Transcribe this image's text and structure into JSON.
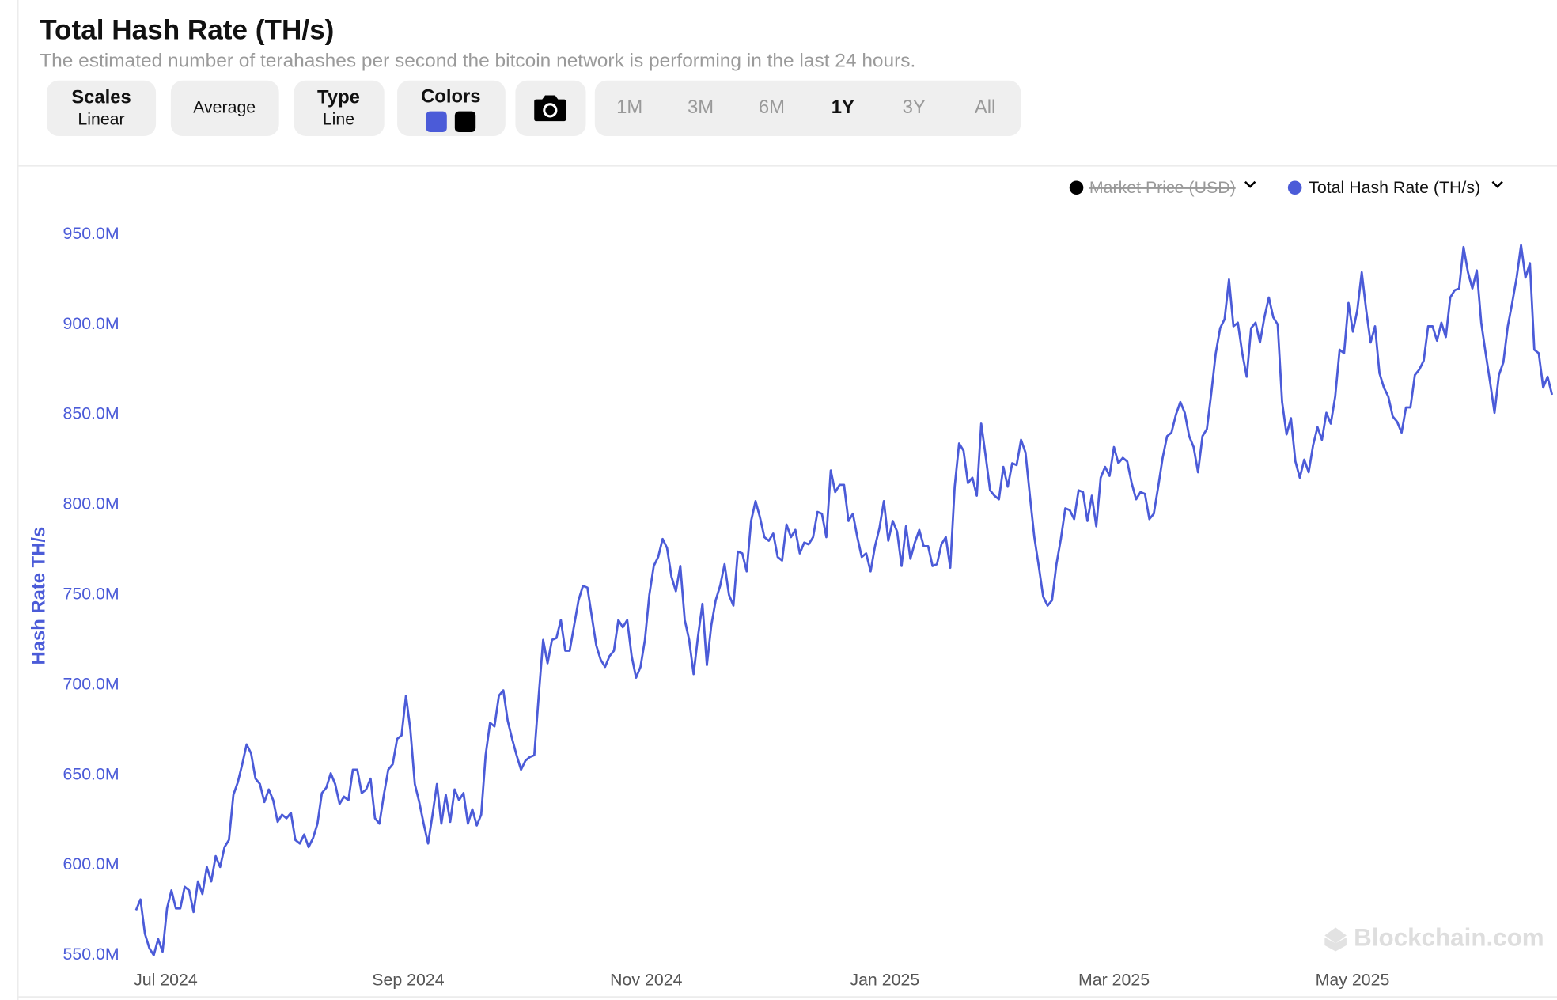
{
  "chart_data": {
    "type": "line",
    "title": "Total Hash Rate (TH/s)",
    "subtitle": "The estimated number of terahashes per second the bitcoin network is performing in the last 24 hours.",
    "y_label": "Hash Rate TH/s",
    "watermark": "Blockchain.com",
    "hidden_series": [
      {
        "name": "Market Price (USD)",
        "color": "#000000"
      }
    ],
    "series": [
      {
        "name": "Total Hash Rate (TH/s)",
        "color": "#4b5bd8",
        "values": [
          575,
          581,
          562,
          554,
          550,
          559,
          552,
          576,
          586,
          576,
          576,
          588,
          586,
          574,
          591,
          584,
          599,
          591,
          605,
          599,
          610,
          614,
          639,
          646,
          656,
          667,
          662,
          648,
          645,
          635,
          642,
          636,
          624,
          628,
          626,
          629,
          614,
          612,
          617,
          610,
          615,
          623,
          640,
          643,
          651,
          645,
          634,
          638,
          636,
          653,
          653,
          640,
          642,
          648,
          626,
          623,
          639,
          653,
          656,
          670,
          672,
          694,
          675,
          645,
          635,
          623,
          612,
          628,
          645,
          623,
          639,
          624,
          642,
          636,
          640,
          623,
          631,
          622,
          628,
          661,
          679,
          677,
          694,
          697,
          680,
          670,
          661,
          653,
          658,
          660,
          661,
          694,
          725,
          712,
          725,
          726,
          736,
          719,
          719,
          733,
          747,
          755,
          754,
          738,
          722,
          714,
          710,
          716,
          719,
          736,
          732,
          736,
          716,
          704,
          710,
          725,
          750,
          766,
          771,
          781,
          776,
          760,
          752,
          766,
          736,
          725,
          706,
          727,
          745,
          711,
          733,
          747,
          755,
          767,
          750,
          744,
          774,
          773,
          763,
          791,
          802,
          793,
          782,
          780,
          784,
          771,
          769,
          789,
          782,
          786,
          773,
          779,
          778,
          782,
          796,
          795,
          782,
          819,
          807,
          811,
          811,
          791,
          795,
          782,
          771,
          773,
          763,
          777,
          787,
          802,
          780,
          791,
          785,
          766,
          788,
          770,
          779,
          786,
          777,
          777,
          766,
          767,
          778,
          782,
          765,
          810,
          834,
          830,
          812,
          815,
          805,
          845,
          827,
          808,
          805,
          803,
          821,
          810,
          823,
          822,
          836,
          829,
          805,
          782,
          766,
          749,
          744,
          747,
          767,
          781,
          798,
          797,
          792,
          808,
          807,
          791,
          805,
          788,
          815,
          821,
          816,
          832,
          823,
          826,
          824,
          812,
          803,
          807,
          806,
          792,
          795,
          810,
          826,
          838,
          840,
          850,
          857,
          851,
          838,
          832,
          818,
          838,
          842,
          862,
          884,
          898,
          903,
          925,
          899,
          901,
          884,
          871,
          898,
          901,
          890,
          904,
          915,
          904,
          900,
          857,
          839,
          848,
          824,
          815,
          825,
          818,
          833,
          843,
          836,
          851,
          845,
          860,
          886,
          884,
          912,
          896,
          908,
          929,
          908,
          890,
          899,
          873,
          865,
          860,
          849,
          846,
          840,
          854,
          854,
          872,
          875,
          880,
          899,
          899,
          891,
          901,
          893,
          915,
          919,
          920,
          943,
          929,
          920,
          930,
          901,
          884,
          868,
          851,
          872,
          879,
          899,
          912,
          926,
          944,
          926,
          934,
          886,
          884,
          865,
          871,
          861
        ]
      }
    ],
    "xlim": [
      0,
      320
    ],
    "xticks": [
      {
        "value": 6.7,
        "label": "Jul 2024"
      },
      {
        "value": 61.5,
        "label": "Sep 2024"
      },
      {
        "value": 115.3,
        "label": "Nov 2024"
      },
      {
        "value": 169.2,
        "label": "Jan 2025"
      },
      {
        "value": 221.0,
        "label": "Mar 2025"
      },
      {
        "value": 274.9,
        "label": "May 2025"
      }
    ],
    "ylim": [
      550,
      950
    ],
    "yticks": [
      {
        "value": 550,
        "label": "550.0M"
      },
      {
        "value": 600,
        "label": "600.0M"
      },
      {
        "value": 650,
        "label": "650.0M"
      },
      {
        "value": 700,
        "label": "700.0M"
      },
      {
        "value": 750,
        "label": "750.0M"
      },
      {
        "value": 800,
        "label": "800.0M"
      },
      {
        "value": 850,
        "label": "850.0M"
      },
      {
        "value": 900,
        "label": "900.0M"
      },
      {
        "value": 950,
        "label": "950.0M"
      }
    ],
    "grid": false
  },
  "controls": {
    "scales": {
      "label": "Scales",
      "value": "Linear"
    },
    "average": "Average",
    "chart_type": {
      "label": "Type",
      "value": "Line"
    },
    "colors": {
      "label": "Colors"
    },
    "ranges": [
      "1M",
      "3M",
      "6M",
      "1Y",
      "3Y",
      "All"
    ],
    "selected_range": "1Y"
  }
}
